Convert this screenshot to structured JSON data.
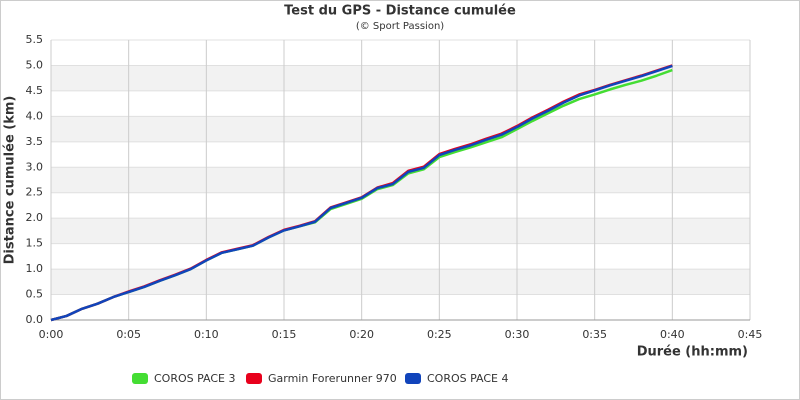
{
  "chart_data": {
    "type": "line",
    "title": "Test du GPS - Distance cumulée",
    "subtitle": "(© Sport Passion)",
    "x_label": "Durée (hh:mm)",
    "y_label": "Distance cumulée (km)",
    "x": [
      0,
      1,
      2,
      3,
      4,
      5,
      6,
      7,
      8,
      9,
      10,
      11,
      12,
      13,
      14,
      15,
      16,
      17,
      18,
      19,
      20,
      21,
      22,
      23,
      24,
      25,
      26,
      27,
      28,
      29,
      30,
      31,
      32,
      33,
      34,
      35,
      36,
      37,
      38,
      39,
      40
    ],
    "series": [
      {
        "name": "COROS PACE 3",
        "color": "#44dd33",
        "values": [
          0,
          0.08,
          0.22,
          0.32,
          0.45,
          0.55,
          0.65,
          0.77,
          0.88,
          1.0,
          1.17,
          1.32,
          1.39,
          1.46,
          1.62,
          1.76,
          1.84,
          1.92,
          2.18,
          2.28,
          2.38,
          2.57,
          2.65,
          2.88,
          2.96,
          3.2,
          3.3,
          3.39,
          3.49,
          3.59,
          3.75,
          3.91,
          4.06,
          4.21,
          4.34,
          4.43,
          4.53,
          4.62,
          4.7,
          4.8,
          4.91
        ]
      },
      {
        "name": "Garmin Forerunner 970",
        "color": "#e8001c",
        "values": [
          0,
          0.08,
          0.22,
          0.32,
          0.45,
          0.56,
          0.66,
          0.78,
          0.89,
          1.01,
          1.18,
          1.33,
          1.4,
          1.47,
          1.63,
          1.77,
          1.85,
          1.94,
          2.21,
          2.31,
          2.41,
          2.6,
          2.69,
          2.93,
          3.01,
          3.26,
          3.36,
          3.45,
          3.56,
          3.66,
          3.81,
          3.98,
          4.13,
          4.29,
          4.43,
          4.52,
          4.62,
          4.71,
          4.8,
          4.9,
          5.0
        ]
      },
      {
        "name": "COROS PACE 4",
        "color": "#1144bb",
        "values": [
          0,
          0.08,
          0.22,
          0.32,
          0.45,
          0.55,
          0.65,
          0.77,
          0.88,
          1.0,
          1.17,
          1.32,
          1.39,
          1.46,
          1.62,
          1.76,
          1.84,
          1.93,
          2.2,
          2.3,
          2.4,
          2.59,
          2.67,
          2.91,
          2.99,
          3.24,
          3.34,
          3.43,
          3.54,
          3.64,
          3.79,
          3.96,
          4.11,
          4.27,
          4.41,
          4.51,
          4.61,
          4.7,
          4.79,
          4.89,
          4.99
        ]
      }
    ],
    "xlim": [
      0,
      45
    ],
    "xticks": [
      {
        "value": 0,
        "label": "0:00"
      },
      {
        "value": 5,
        "label": "0:05"
      },
      {
        "value": 10,
        "label": "0:10"
      },
      {
        "value": 15,
        "label": "0:15"
      },
      {
        "value": 20,
        "label": "0:20"
      },
      {
        "value": 25,
        "label": "0:25"
      },
      {
        "value": 30,
        "label": "0:30"
      },
      {
        "value": 35,
        "label": "0:35"
      },
      {
        "value": 40,
        "label": "0:40"
      },
      {
        "value": 45,
        "label": "0:45"
      }
    ],
    "ylim": [
      0,
      5.5
    ],
    "yticks": [
      {
        "value": 0,
        "label": "0.0"
      },
      0.5,
      {
        "value": 1,
        "label": "1.0"
      },
      1.5,
      {
        "value": 2,
        "label": "2.0"
      },
      2.5,
      {
        "value": 3,
        "label": "3.0"
      },
      3.5,
      {
        "value": 4,
        "label": "4.0"
      },
      4.5,
      {
        "value": 5,
        "label": "5.0"
      },
      5.5
    ],
    "grid": true,
    "legend": "bottom"
  }
}
